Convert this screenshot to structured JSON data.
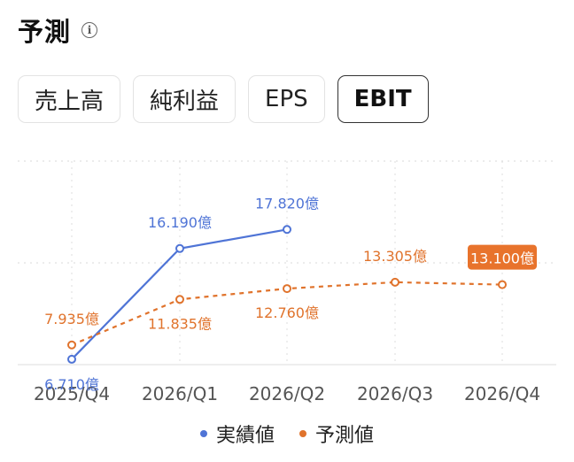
{
  "header": {
    "title": "予測",
    "info_icon": "info-circle-icon"
  },
  "tabs": [
    {
      "label": "売上高",
      "active": false
    },
    {
      "label": "純利益",
      "active": false
    },
    {
      "label": "EPS",
      "active": false
    },
    {
      "label": "EBIT",
      "active": true
    }
  ],
  "colors": {
    "actual": "#4f74d6",
    "forecast": "#e0732c",
    "badge_bg": "#e8732c"
  },
  "chart_data": {
    "type": "line",
    "categories": [
      "2025/Q4",
      "2026/Q1",
      "2026/Q2",
      "2026/Q3",
      "2026/Q4"
    ],
    "series": [
      {
        "name": "実績値",
        "values": [
          6.71,
          16.19,
          17.82,
          null,
          null
        ],
        "labels": [
          "6.710億",
          "16.190億",
          "17.820億",
          null,
          null
        ]
      },
      {
        "name": "予測値",
        "values": [
          7.935,
          11.835,
          12.76,
          13.305,
          13.1
        ],
        "labels": [
          "7.935億",
          "11.835億",
          "12.760億",
          "13.305億",
          "13.100億"
        ]
      }
    ],
    "highlighted_label": "13.100億",
    "legend_position": "bottom",
    "grid": true
  },
  "legend": {
    "actual": "実績値",
    "forecast": "予測値"
  }
}
